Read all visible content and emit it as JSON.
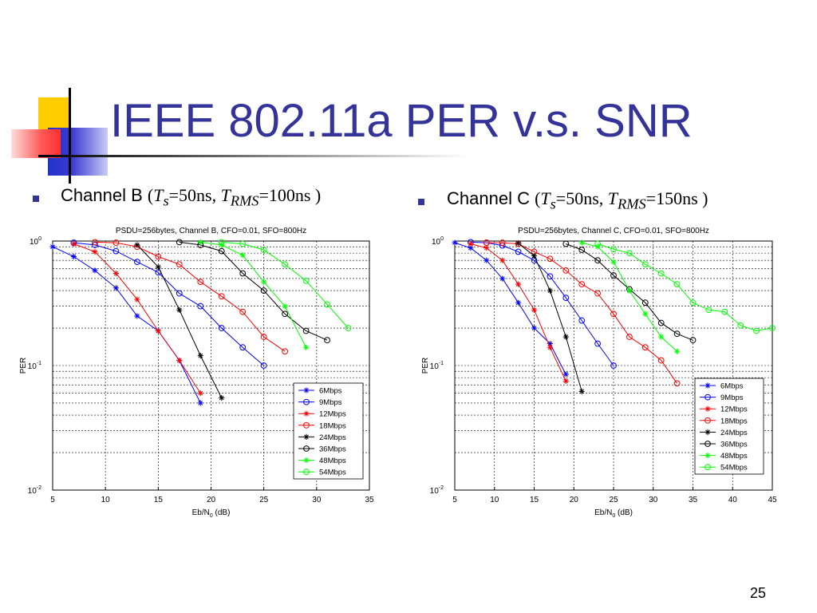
{
  "slide": {
    "title": "IEEE 802.11a PER v.s. SNR",
    "page_number": "25",
    "accent_color": "#333399"
  },
  "bullets": [
    {
      "label": "Channel B",
      "ts": "=50ns,",
      "trms": "=100ns )"
    },
    {
      "label": "Channel C",
      "ts": "=50ns,",
      "trms": "=150ns )"
    }
  ],
  "chart_data": [
    {
      "type": "line",
      "title": "PSDU=256bytes, Channel B, CFO=0.01, SFO=800Hz",
      "xlabel": "Eb/N0 (dB)",
      "ylabel": "PER",
      "xlim": [
        5,
        35
      ],
      "ylim": [
        0.01,
        1
      ],
      "yscale": "log",
      "xticks": [
        "5",
        "10",
        "15",
        "20",
        "25",
        "30",
        "35"
      ],
      "yticks": [
        "10^0",
        "10^-1",
        "10^-2"
      ],
      "grid": true,
      "legend_position": "bottom-right",
      "series": [
        {
          "name": "6Mbps",
          "color": "#0000ff",
          "marker": "star",
          "x": [
            5,
            7,
            9,
            11,
            13,
            15,
            17,
            19
          ],
          "y": [
            0.9,
            0.75,
            0.58,
            0.42,
            0.25,
            0.19,
            0.11,
            0.05
          ]
        },
        {
          "name": "9Mbps",
          "color": "#0000ff",
          "marker": "circle",
          "x": [
            7,
            9,
            11,
            13,
            15,
            17,
            19,
            21,
            23,
            25
          ],
          "y": [
            0.97,
            0.93,
            0.83,
            0.68,
            0.56,
            0.38,
            0.3,
            0.2,
            0.14,
            0.1
          ]
        },
        {
          "name": "12Mbps",
          "color": "#ff0000",
          "marker": "star",
          "x": [
            7,
            9,
            11,
            13,
            15,
            17,
            19
          ],
          "y": [
            0.95,
            0.82,
            0.55,
            0.34,
            0.19,
            0.11,
            0.06
          ]
        },
        {
          "name": "18Mbps",
          "color": "#ff0000",
          "marker": "circle",
          "x": [
            9,
            11,
            13,
            15,
            17,
            19,
            21,
            23,
            25,
            27
          ],
          "y": [
            0.98,
            0.97,
            0.9,
            0.75,
            0.65,
            0.47,
            0.36,
            0.27,
            0.17,
            0.13
          ]
        },
        {
          "name": "24Mbps",
          "color": "#000000",
          "marker": "star",
          "x": [
            13,
            15,
            17,
            19,
            21
          ],
          "y": [
            0.93,
            0.62,
            0.28,
            0.12,
            0.055
          ]
        },
        {
          "name": "36Mbps",
          "color": "#000000",
          "marker": "circle",
          "x": [
            17,
            19,
            21,
            23,
            25,
            27,
            29,
            31
          ],
          "y": [
            0.98,
            0.93,
            0.83,
            0.55,
            0.4,
            0.26,
            0.19,
            0.16
          ]
        },
        {
          "name": "48Mbps",
          "color": "#00ff00",
          "marker": "star",
          "x": [
            19,
            21,
            23,
            25,
            27,
            29
          ],
          "y": [
            0.98,
            0.93,
            0.77,
            0.47,
            0.3,
            0.14
          ]
        },
        {
          "name": "54Mbps",
          "color": "#00ff00",
          "marker": "circle",
          "x": [
            21,
            23,
            25,
            27,
            29,
            31,
            33
          ],
          "y": [
            0.98,
            0.95,
            0.85,
            0.65,
            0.48,
            0.31,
            0.2
          ]
        }
      ]
    },
    {
      "type": "line",
      "title": "PSDU=256bytes, Channel C, CFO=0.01, SFO=800Hz",
      "xlabel": "Eb/N0 (dB)",
      "ylabel": "PER",
      "xlim": [
        5,
        45
      ],
      "ylim": [
        0.01,
        1
      ],
      "yscale": "log",
      "xticks": [
        "5",
        "10",
        "15",
        "20",
        "25",
        "30",
        "35",
        "40",
        "45"
      ],
      "yticks": [
        "10^0",
        "10^-1",
        "10^-2"
      ],
      "grid": true,
      "legend_position": "bottom-right",
      "series": [
        {
          "name": "6Mbps",
          "color": "#0000ff",
          "marker": "star",
          "x": [
            5,
            7,
            9,
            11,
            13,
            15,
            17,
            19
          ],
          "y": [
            0.97,
            0.88,
            0.7,
            0.5,
            0.32,
            0.2,
            0.15,
            0.085
          ]
        },
        {
          "name": "9Mbps",
          "color": "#0000ff",
          "marker": "circle",
          "x": [
            7,
            9,
            11,
            13,
            15,
            17,
            19,
            21,
            23,
            25
          ],
          "y": [
            0.98,
            0.97,
            0.92,
            0.82,
            0.7,
            0.52,
            0.35,
            0.23,
            0.15,
            0.1
          ]
        },
        {
          "name": "12Mbps",
          "color": "#ff0000",
          "marker": "star",
          "x": [
            7,
            9,
            11,
            13,
            15,
            17,
            19
          ],
          "y": [
            0.95,
            0.88,
            0.7,
            0.45,
            0.28,
            0.14,
            0.075
          ]
        },
        {
          "name": "18Mbps",
          "color": "#ff0000",
          "marker": "circle",
          "x": [
            9,
            11,
            13,
            15,
            17,
            19,
            21,
            23,
            25,
            27,
            29,
            31,
            33
          ],
          "y": [
            0.97,
            0.97,
            0.95,
            0.82,
            0.72,
            0.58,
            0.45,
            0.38,
            0.26,
            0.17,
            0.14,
            0.11,
            0.072
          ]
        },
        {
          "name": "24Mbps",
          "color": "#000000",
          "marker": "star",
          "x": [
            13,
            15,
            17,
            19,
            21
          ],
          "y": [
            0.96,
            0.76,
            0.4,
            0.17,
            0.062
          ]
        },
        {
          "name": "36Mbps",
          "color": "#000000",
          "marker": "circle",
          "x": [
            19,
            21,
            23,
            25,
            27,
            29,
            31,
            33,
            35
          ],
          "y": [
            0.95,
            0.85,
            0.7,
            0.53,
            0.41,
            0.32,
            0.22,
            0.18,
            0.16
          ]
        },
        {
          "name": "48Mbps",
          "color": "#00ff00",
          "marker": "star",
          "x": [
            21,
            23,
            25,
            27,
            29,
            31,
            33
          ],
          "y": [
            0.97,
            0.9,
            0.68,
            0.4,
            0.26,
            0.17,
            0.13
          ]
        },
        {
          "name": "54Mbps",
          "color": "#00ff00",
          "marker": "circle",
          "x": [
            23,
            25,
            27,
            29,
            31,
            33,
            35,
            37,
            39,
            41,
            43,
            45
          ],
          "y": [
            0.95,
            0.86,
            0.8,
            0.65,
            0.55,
            0.45,
            0.32,
            0.28,
            0.27,
            0.21,
            0.19,
            0.2
          ]
        }
      ]
    }
  ]
}
